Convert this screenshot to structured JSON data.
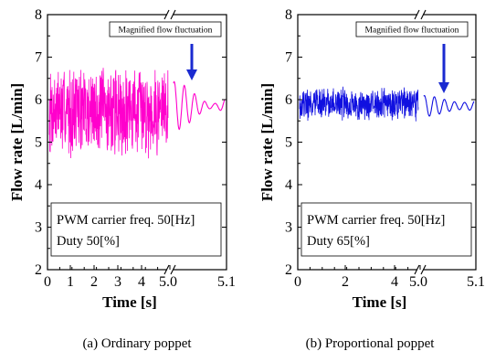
{
  "chart_data": [
    {
      "type": "line",
      "panel": "a",
      "caption": "(a) Ordinary poppet",
      "ylabel": "Flow rate [L/min]",
      "xlabel": "Time [s]",
      "ylim": [
        2,
        8
      ],
      "yticks": [
        "2",
        "3",
        "4",
        "5",
        "6",
        "7",
        "8"
      ],
      "xticks_main": [
        "0",
        "1",
        "2",
        "3",
        "4",
        "5.0"
      ],
      "xticks_zoom": [
        "5.0",
        "5.1"
      ],
      "color": "#ff00cc",
      "annotation": "Magnified flow fluctuation",
      "legend_lines": [
        "PWM carrier freq. 50[Hz]",
        "Duty 50[%]"
      ],
      "series": [
        {
          "segment": "0 to 5.0 s",
          "x_range": [
            0,
            5.0
          ],
          "mean": 5.75,
          "min": 4.1,
          "max": 7.7
        },
        {
          "segment": "5.0 to 5.1 s (magnified)",
          "x_range": [
            5.0,
            5.1
          ],
          "mean": 5.85,
          "min": 5.35,
          "max": 6.5,
          "cycles": 5
        }
      ]
    },
    {
      "type": "line",
      "panel": "b",
      "caption": "(b) Proportional poppet",
      "ylabel": "Flow rate [L/min]",
      "xlabel": "Time [s]",
      "ylim": [
        2,
        8
      ],
      "yticks": [
        "2",
        "3",
        "4",
        "5",
        "6",
        "7",
        "8"
      ],
      "xticks_main": [
        "0",
        "2",
        "4",
        "5.0"
      ],
      "xticks_zoom": [
        "5.0",
        "5.1"
      ],
      "color": "#1010e0",
      "annotation": "Magnified flow fluctuation",
      "legend_lines": [
        "PWM carrier freq. 50[Hz]",
        "Duty 65[%]"
      ],
      "series": [
        {
          "segment": "0 to 5.0 s",
          "x_range": [
            0,
            5.0
          ],
          "mean": 5.9,
          "min": 5.1,
          "max": 6.6
        },
        {
          "segment": "5.0 to 5.1 s (magnified)",
          "x_range": [
            5.0,
            5.1
          ],
          "mean": 5.85,
          "min": 5.6,
          "max": 6.2,
          "cycles": 5
        }
      ]
    }
  ]
}
